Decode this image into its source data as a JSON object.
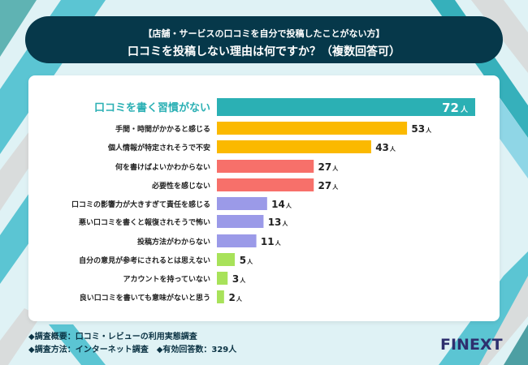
{
  "header": {
    "subtitle": "【店舗・サービスの口コミを自分で投稿したことがない方】",
    "title": "口コミを投稿しない理由は何ですか？（複数回答可）"
  },
  "chart_data": {
    "type": "bar",
    "orientation": "horizontal",
    "unit": "人",
    "xlim": [
      0,
      72
    ],
    "categories": [
      "口コミを書く習慣がない",
      "手間・時間がかかると感じる",
      "個人情報が特定されそうで不安",
      "何を書けばよいかわからない",
      "必要性を感じない",
      "口コミの影響力が大きすぎて責任を感じる",
      "悪い口コミを書くと報復されそうで怖い",
      "投稿方法がわからない",
      "自分の意見が参考にされるとは思えない",
      "アカウントを持っていない",
      "良い口コミを書いても意味がないと思う"
    ],
    "values": [
      72,
      53,
      43,
      27,
      27,
      14,
      13,
      11,
      5,
      3,
      2
    ],
    "colors": [
      "#2bb0b4",
      "#fbb900",
      "#fbb900",
      "#f7706a",
      "#f7706a",
      "#9b9ae8",
      "#9b9ae8",
      "#9b9ae8",
      "#a8e25a",
      "#a8e25a",
      "#a8e25a"
    ]
  },
  "footer": {
    "line1": "◆調査概要：口コミ・レビューの利用実態調査",
    "line2": "◆調査方法：インターネット調査　◆有効回答数：329人"
  },
  "logo": "FINEXT"
}
